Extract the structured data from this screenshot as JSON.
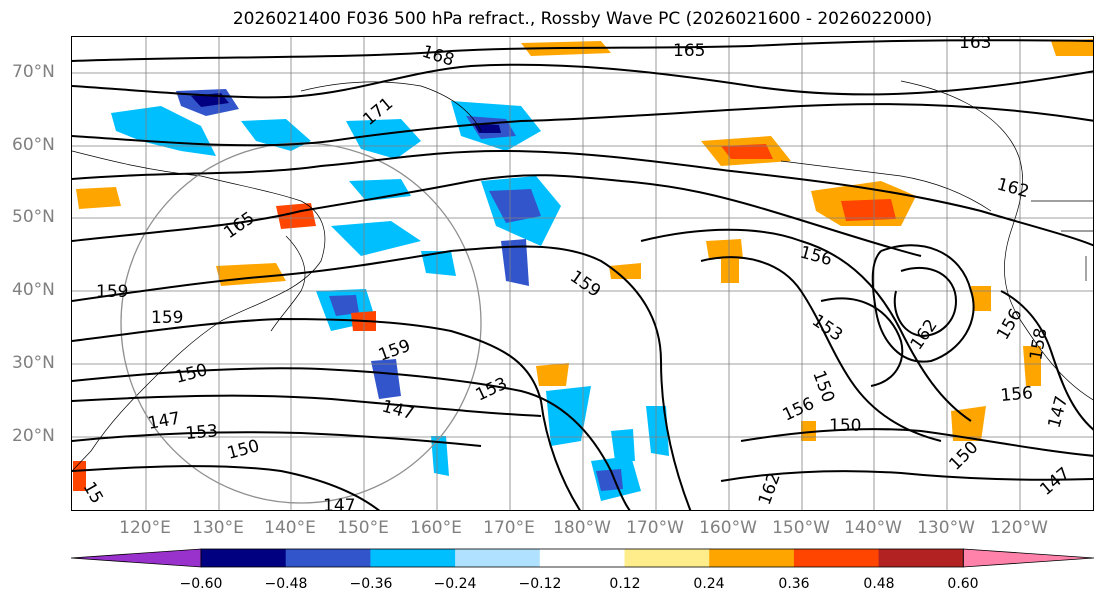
{
  "title": "2026021400 F036 500 hPa refract., Rossby Wave PC (2026021600 - 2026022000)",
  "lat_labels": [
    "70°N",
    "60°N",
    "50°N",
    "40°N",
    "30°N",
    "20°N"
  ],
  "lon_labels": [
    "120°E",
    "130°E",
    "140°E",
    "150°E",
    "160°E",
    "170°E",
    "180°W",
    "170°W",
    "160°W",
    "150°W",
    "140°W",
    "130°W",
    "120°W"
  ],
  "colorbar": {
    "ticks": [
      "−0.60",
      "−0.48",
      "−0.36",
      "−0.24",
      "−0.12",
      "0.12",
      "0.24",
      "0.36",
      "0.48",
      "0.60"
    ],
    "colors": [
      "#9932cc",
      "#000080",
      "#3355cc",
      "#00bfff",
      "#b0e2ff",
      "#ffffff",
      "#ffec8b",
      "#ffa500",
      "#ff4500",
      "#b22222",
      "#ff82ab"
    ]
  },
  "contour_labels": [
    "168",
    "165",
    "163",
    "171",
    "165",
    "162",
    "159",
    "159",
    "159",
    "159",
    "156",
    "153",
    "162",
    "156",
    "150",
    "147",
    "153",
    "153",
    "147",
    "150",
    "156",
    "150",
    "150",
    "147",
    "150",
    "156",
    "158",
    "147",
    "162",
    "15",
    "147"
  ],
  "colors": {
    "grid": "#808080",
    "contour": "#000000",
    "circle": "#909090"
  }
}
